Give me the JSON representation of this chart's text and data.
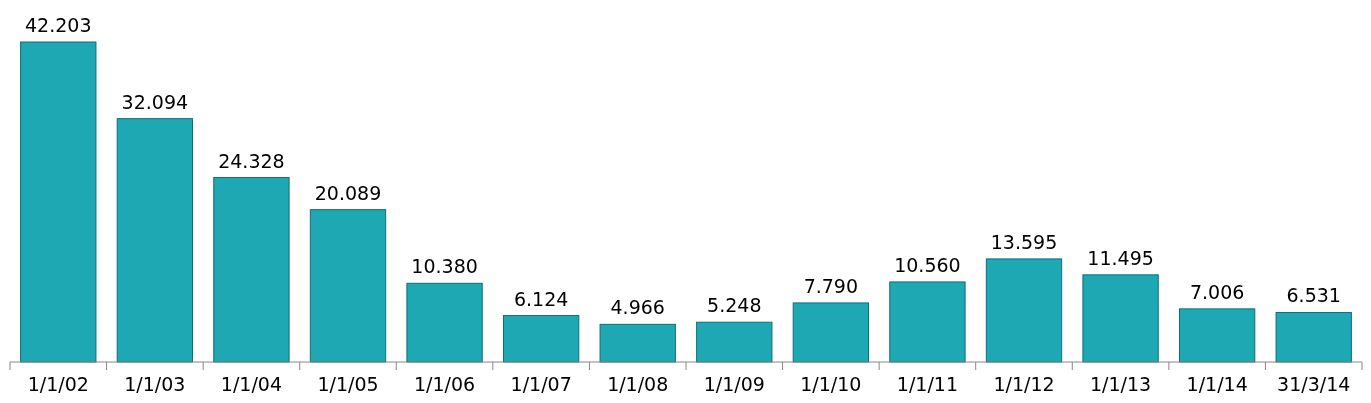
{
  "chart_data": {
    "type": "bar",
    "categories": [
      "1/1/02",
      "1/1/03",
      "1/1/04",
      "1/1/05",
      "1/1/06",
      "1/1/07",
      "1/1/08",
      "1/1/09",
      "1/1/10",
      "1/1/11",
      "1/1/12",
      "1/1/13",
      "1/1/14",
      "31/3/14"
    ],
    "values": [
      42203,
      32094,
      24328,
      20089,
      10380,
      6124,
      4966,
      5248,
      7790,
      10560,
      13595,
      11495,
      7006,
      6531
    ],
    "value_labels": [
      "42.203",
      "32.094",
      "24.328",
      "20.089",
      "10.380",
      "6.124",
      "4.966",
      "5.248",
      "7.790",
      "10.560",
      "13.595",
      "11.495",
      "7.006",
      "6.531"
    ],
    "color": "#1ea8b4"
  }
}
